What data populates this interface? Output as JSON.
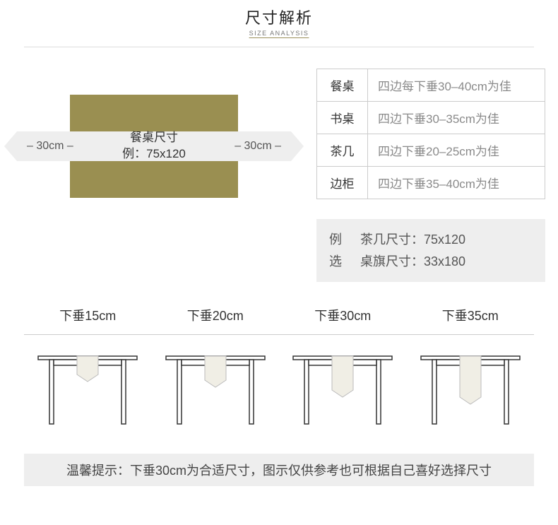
{
  "header": {
    "title_cn": "尺寸解析",
    "title_en": "SIZE ANALYSIS"
  },
  "diagram": {
    "rect_color": "#9a8f51",
    "bar_color": "#eeeeee",
    "left_dim": "– 30cm –",
    "right_dim": "– 30cm –",
    "center_line1": "餐桌尺寸",
    "center_line2": "例：75x120"
  },
  "guide": {
    "rows": [
      {
        "k": "餐桌",
        "v": "四边每下垂30–40cm为佳"
      },
      {
        "k": "书桌",
        "v": "四边下垂30–35cm为佳"
      },
      {
        "k": "茶几",
        "v": "四边下垂20–25cm为佳"
      },
      {
        "k": "边柜",
        "v": "四边下垂35–40cm为佳"
      }
    ]
  },
  "example": {
    "line1_label": "例",
    "line1_text": "茶几尺寸：75x120",
    "line2_label": "选",
    "line2_text": "桌旗尺寸：33x180"
  },
  "hang": {
    "labels": [
      "下垂15cm",
      "下垂20cm",
      "下垂30cm",
      "下垂35cm"
    ],
    "runner_depths": [
      26,
      34,
      48,
      58
    ],
    "table_stroke": "#333333",
    "runner_fill": "#f0eee5",
    "runner_stroke": "#bbbbbb"
  },
  "tip": "温馨提示：下垂30cm为合适尺寸，图示仅供参考也可根据自己喜好选择尺寸"
}
